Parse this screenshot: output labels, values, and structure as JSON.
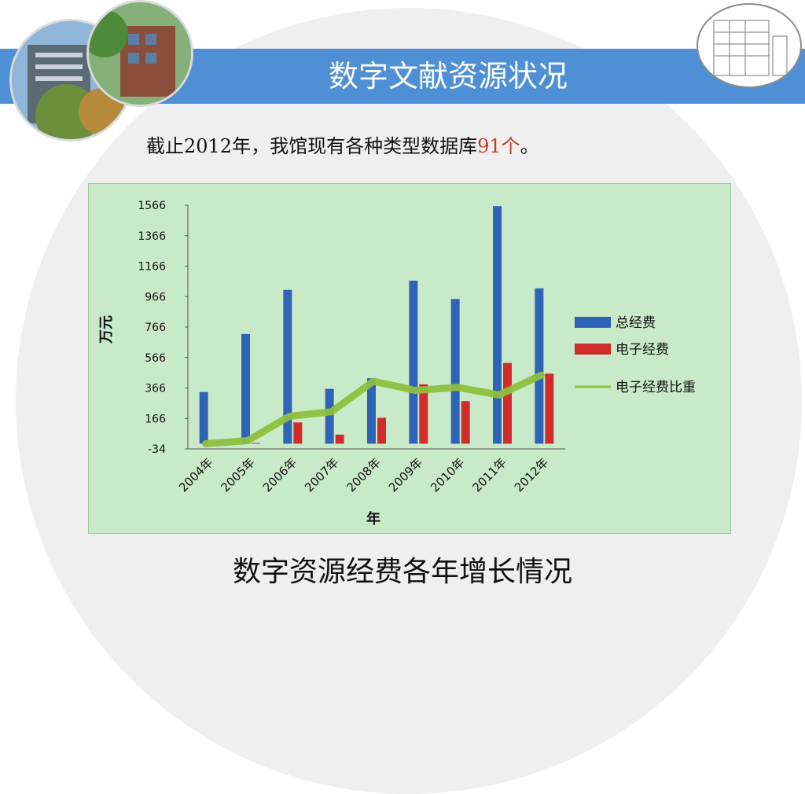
{
  "slide": {
    "title": "数字文献资源状况",
    "subtitle_prefix": "截止2012年，我馆现有各种类型数据库",
    "subtitle_highlight": "91个",
    "subtitle_suffix": "。",
    "caption": "数字资源经费各年增长情况"
  },
  "colors": {
    "header_band": "#4e8fd5",
    "chart_bg": "#c9eac9",
    "total_bar": "#2f63b5",
    "electronic_bar": "#d12b2b",
    "ratio_line": "#8fbf3f",
    "highlight": "#c0392b"
  },
  "chart_data": {
    "type": "bar",
    "xlabel": "年",
    "ylabel": "万元",
    "categories": [
      "2004年",
      "2005年",
      "2006年",
      "2007年",
      "2008年",
      "2009年",
      "2010年",
      "2011年",
      "2012年"
    ],
    "yticks": [
      "1566",
      "1366",
      "1166",
      "966",
      "766",
      "566",
      "366",
      "166",
      "-34"
    ],
    "ylim": [
      -34,
      1566
    ],
    "legend_position": "right",
    "series": [
      {
        "name": "总经费",
        "kind": "bar",
        "values": [
          340,
          720,
          1010,
          360,
          430,
          1070,
          950,
          1560,
          1020
        ]
      },
      {
        "name": "电子经费",
        "kind": "bar",
        "values": [
          0,
          5,
          140,
          60,
          170,
          390,
          280,
          530,
          460
        ]
      },
      {
        "name": "电子经费比重",
        "kind": "line",
        "values": [
          0,
          20,
          180,
          210,
          410,
          350,
          370,
          320,
          450
        ]
      }
    ]
  }
}
